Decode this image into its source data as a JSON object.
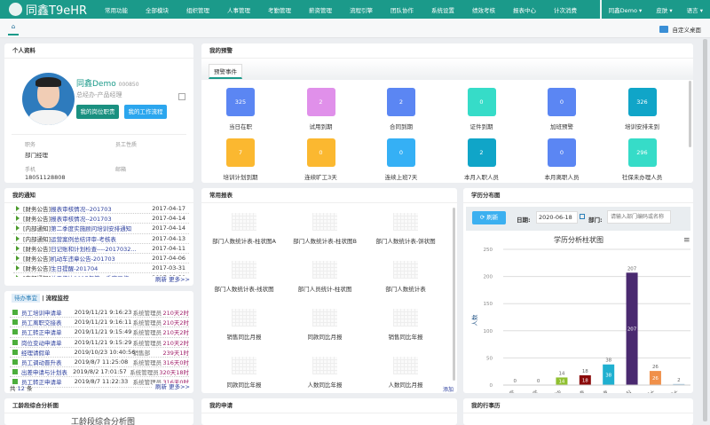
{
  "header": {
    "logo": "同鑫T9eHR",
    "nav": [
      "常用功能",
      "全部模块",
      "组织管理",
      "人事管理",
      "考勤管理",
      "薪资管理",
      "流程引擎",
      "团队协作",
      "系统设置",
      "绩效考核",
      "报表中心",
      "计次消费"
    ],
    "user": "同鑫Demo ▾",
    "skin": "皮肤 ▾",
    "lang": "语言 ▾"
  },
  "tabbar": {
    "home_icon": "home-icon",
    "customize": "自定义桌面"
  },
  "profile": {
    "title": "个人资料",
    "name": "同鑫Demo",
    "code": "000850",
    "position": "总经办-产品经理",
    "btn1": "我的岗位职责",
    "btn2": "我的工作流程",
    "f1_label": "职务",
    "f1_value": "部门经理",
    "f2_label": "员工性质",
    "f3_label": "手机",
    "f3_value": "18051128808",
    "f4_label": "邮箱"
  },
  "warning": {
    "title": "我的预警",
    "tab": "预警事件",
    "items": [
      {
        "v": "325",
        "l": "当日在职",
        "c": "#5b86f3"
      },
      {
        "v": "2",
        "l": "试用到期",
        "c": "#e090ea"
      },
      {
        "v": "2",
        "l": "合同到期",
        "c": "#5b86f3"
      },
      {
        "v": "0",
        "l": "证件到期",
        "c": "#36dcc8"
      },
      {
        "v": "0",
        "l": "加班预警",
        "c": "#5b86f3"
      },
      {
        "v": "326",
        "l": "培训安排未到",
        "c": "#10a5c8"
      },
      {
        "v": "7",
        "l": "培训计划到期",
        "c": "#fbb830"
      },
      {
        "v": "0",
        "l": "连续旷工3天",
        "c": "#fbb830"
      },
      {
        "v": "0",
        "l": "连续上班7天",
        "c": "#35b0f5"
      },
      {
        "v": "2",
        "l": "本月入职人员",
        "c": "#10a5c8"
      },
      {
        "v": "0",
        "l": "本月离职人员",
        "c": "#5b86f3"
      },
      {
        "v": "296",
        "l": "社保未办理人员",
        "c": "#36dcc8"
      }
    ]
  },
  "notice": {
    "title": "我的通知",
    "items": [
      {
        "tag": "[财务公告]",
        "t": "报表审核情况--201703",
        "d": "2017-04-17"
      },
      {
        "tag": "[财务公告]",
        "t": "报表审核情况--201703",
        "d": "2017-04-14"
      },
      {
        "tag": "[内部通知]",
        "t": "第二季度实施顾问培训安排通知",
        "d": "2017-04-14"
      },
      {
        "tag": "[内部通知]",
        "t": "运营案例总结评审-考核表",
        "d": "2017-04-13"
      },
      {
        "tag": "[财务公告]",
        "t": "日记账和计划检查----2017032...",
        "d": "2017-04-11"
      },
      {
        "tag": "[财务公告]",
        "t": "机动车违章公告-201703",
        "d": "2017-04-06"
      },
      {
        "tag": "[财务公告]",
        "t": "生日提醒-201704",
        "d": "2017-03-31"
      },
      {
        "tag": "[内部通知]",
        "t": "关于传达2017年第一季度工作",
        "d": "2017-03-30"
      }
    ],
    "refresh": "刷新",
    "more": "更多>>"
  },
  "todo": {
    "tab1": "待办事宜",
    "tab2": "流程监控",
    "items": [
      {
        "n": "员工培训申请单",
        "t": "2019/11/21 9:16:23",
        "u": "系统管理员",
        "d": "210天2时"
      },
      {
        "n": "员工离职交接表",
        "t": "2019/11/21 9:16:11",
        "u": "系统管理员",
        "d": "210天2时"
      },
      {
        "n": "员工转正申请单",
        "t": "2019/11/21 9:15:49",
        "u": "系统管理员",
        "d": "210天2时"
      },
      {
        "n": "岗位变动申请单",
        "t": "2019/11/21 9:15:29",
        "u": "系统管理员",
        "d": "210天2时"
      },
      {
        "n": "经理请假单",
        "t": "2019/10/23 10:40:56",
        "u": "销售部",
        "d": "239天1时"
      },
      {
        "n": "员工调动晋升表",
        "t": "2019/8/7 11:25:08",
        "u": "系统管理员",
        "d": "316天0时"
      },
      {
        "n": "出差申请与计划表",
        "t": "2019/8/2 17:01:57",
        "u": "系统管理员",
        "d": "320天18时"
      },
      {
        "n": "员工转正申请单",
        "t": "2019/8/7 11:22:33",
        "u": "系统管理员",
        "d": "316天0时"
      }
    ],
    "total_prefix": "共",
    "total": "12",
    "total_suffix": "条",
    "refresh": "刷新",
    "more": "更多>>"
  },
  "seniority": {
    "title": "工龄段综合分析图",
    "chart_title": "工龄段综合分析图"
  },
  "reports": {
    "title": "常用报表",
    "items": [
      "部门人数统计表-柱状图A",
      "部门人数统计表-柱状图B",
      "部门人数统计表-饼状图",
      "部门人数统计表-线状图",
      "部门人员统计-柱状图",
      "部门人数统计表",
      "销售同比月报",
      "同款同比月报",
      "销售同比年报",
      "同款同比年报",
      "人数同比年报",
      "人数同比月报"
    ],
    "add": "添加"
  },
  "apply": {
    "title": "我的申请"
  },
  "calendar": {
    "title": "我的行事历"
  },
  "edu": {
    "title": "学历分布图",
    "refresh": "刷新",
    "date_label": "日期:",
    "date": "2020-06-18",
    "dept_label": "部门:",
    "dept_placeholder": "请输入部门编码或名称"
  },
  "chart_data": {
    "type": "bar",
    "title": "学历分析柱状图",
    "ylabel": "人数",
    "categories": [
      "小学",
      "中学",
      "高中",
      "中专",
      "大专",
      "本科",
      "硕士",
      "博士"
    ],
    "values": [
      0,
      0,
      14,
      18,
      38,
      207,
      26,
      2
    ],
    "colors": [
      "#7cb5ec",
      "#7cb5ec",
      "#90c030",
      "#8b0a0a",
      "#20b0d0",
      "#4a2a70",
      "#f0904a",
      "#a0c8e0"
    ],
    "ylim": [
      0,
      250
    ],
    "yticks": [
      0,
      50,
      100,
      150,
      200,
      250
    ],
    "grid": true
  }
}
